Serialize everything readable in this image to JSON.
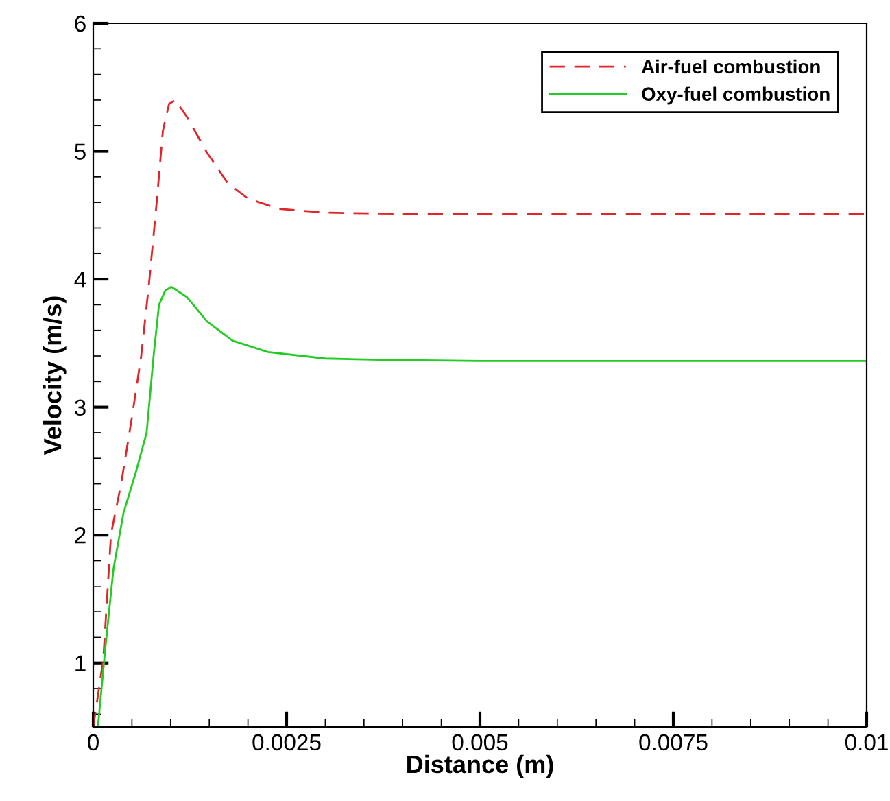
{
  "chart_data": {
    "type": "line",
    "xlabel": "Distance (m)",
    "ylabel": "Velocity (m/s)",
    "xlim": [
      0,
      0.01
    ],
    "ylim": [
      0.5,
      6
    ],
    "xticks": [
      0,
      {
        "value": 0.0025,
        "label": "0.0025"
      },
      {
        "value": 0.005,
        "label": "0.005"
      },
      {
        "value": 0.0075,
        "label": "0.0075"
      },
      {
        "value": 0.01,
        "label": "0.01"
      }
    ],
    "yticks": [
      1,
      2,
      3,
      4,
      5,
      6
    ],
    "legend": "top right",
    "grid": false,
    "series": [
      {
        "name": "Air-fuel combustion",
        "color": "#e0262a",
        "line_style": "dashed",
        "x": [
          0,
          0.00013,
          0.00023,
          0.00036,
          0.0005,
          0.00062,
          0.00072,
          0.00082,
          0.0009,
          0.00098,
          0.00106,
          0.00121,
          0.00147,
          0.00174,
          0.002,
          0.0024,
          0.003,
          0.004,
          0.006,
          0.008,
          0.01
        ],
        "values": [
          0.5,
          1.03,
          2.01,
          2.4,
          2.92,
          3.4,
          3.96,
          4.6,
          5.16,
          5.37,
          5.4,
          5.27,
          4.99,
          4.75,
          4.63,
          4.55,
          4.52,
          4.51,
          4.51,
          4.51,
          4.51
        ]
      },
      {
        "name": "Oxy-fuel combustion",
        "color": "#22cc22",
        "line_style": "solid",
        "x": [
          6e-05,
          0.00016,
          0.00026,
          0.00039,
          0.00055,
          0.00069,
          0.00078,
          0.00085,
          0.00093,
          0.00101,
          0.00121,
          0.00147,
          0.0018,
          0.00226,
          0.003,
          0.0037,
          0.005,
          0.0075,
          0.01
        ],
        "values": [
          0.5,
          1.14,
          1.73,
          2.17,
          2.49,
          2.8,
          3.4,
          3.8,
          3.91,
          3.94,
          3.86,
          3.67,
          3.52,
          3.43,
          3.38,
          3.37,
          3.36,
          3.36,
          3.36
        ]
      }
    ]
  }
}
